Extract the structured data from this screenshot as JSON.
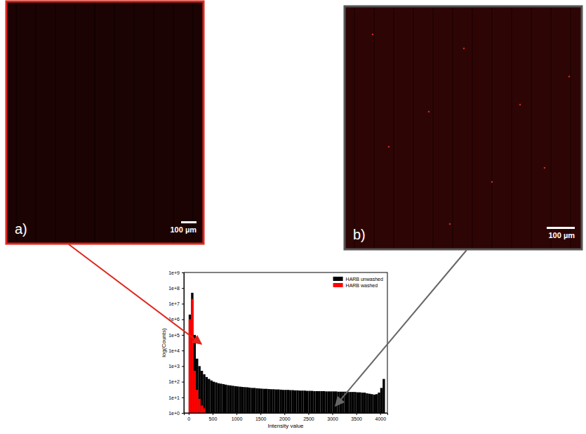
{
  "panels": [
    {
      "label": "a)",
      "scale_bar": "100 µm"
    },
    {
      "label": "b)",
      "scale_bar": "100 µm"
    }
  ],
  "chart_data": {
    "type": "histogram",
    "x_label": "Intensity value",
    "y_label": "log(Counts)",
    "bins": [
      0,
      50,
      100,
      150,
      200,
      250,
      300,
      350,
      400,
      450,
      500,
      550,
      600,
      650,
      700,
      750,
      800,
      850,
      900,
      950,
      1000,
      1050,
      1100,
      1150,
      1200,
      1250,
      1300,
      1350,
      1400,
      1450,
      1500,
      1550,
      1600,
      1650,
      1700,
      1750,
      1800,
      1850,
      1900,
      1950,
      2000,
      2050,
      2100,
      2150,
      2200,
      2250,
      2300,
      2350,
      2400,
      2450,
      2500,
      2550,
      2600,
      2650,
      2700,
      2750,
      2800,
      2850,
      2900,
      2950,
      3000,
      3050,
      3100,
      3150,
      3200,
      3250,
      3300,
      3350,
      3400,
      3450,
      3500,
      3550,
      3600,
      3650,
      3700,
      3750,
      3800,
      3850,
      3900,
      3950,
      4000,
      4050,
      4100
    ],
    "series": [
      {
        "name": "HARB unwashed",
        "color": "#000000",
        "values": [
          2000000,
          50000000,
          100000,
          3000,
          1000,
          500,
          300,
          200,
          150,
          120,
          100,
          90,
          80,
          75,
          70,
          65,
          60,
          58,
          55,
          52,
          50,
          48,
          46,
          45,
          44,
          42,
          40,
          40,
          38,
          37,
          36,
          35,
          35,
          34,
          33,
          33,
          32,
          32,
          31,
          30,
          30,
          30,
          29,
          29,
          28,
          28,
          27,
          27,
          27,
          26,
          26,
          26,
          25,
          25,
          25,
          25,
          25,
          24,
          24,
          24,
          24,
          24,
          23,
          23,
          23,
          23,
          22,
          22,
          22,
          22,
          21,
          21,
          20,
          20,
          18,
          17,
          16,
          15,
          16,
          20,
          40,
          150
        ]
      },
      {
        "name": "HARB washed",
        "color": "#ff0000",
        "values": [
          1000000,
          20000000,
          500,
          30,
          8,
          3,
          2,
          1,
          0,
          0,
          0,
          0,
          0,
          0,
          0,
          0,
          0,
          0,
          0,
          0,
          0,
          0,
          0,
          0,
          0,
          0,
          0,
          0,
          0,
          0,
          0,
          0,
          0,
          0,
          0,
          0,
          0,
          0,
          0,
          0,
          0,
          0,
          0,
          0,
          0,
          0,
          0,
          0,
          0,
          0,
          0,
          0,
          0,
          0,
          0,
          0,
          0,
          0,
          0,
          0,
          0,
          0,
          0,
          0,
          0,
          0,
          0,
          0,
          0,
          0,
          0,
          0,
          0,
          0,
          0,
          0,
          0,
          0,
          0,
          0,
          0,
          0
        ]
      }
    ],
    "xlim": [
      -100,
      4150
    ],
    "ylim": [
      1,
      1000000000
    ],
    "xticks": [
      0,
      500,
      1000,
      1500,
      2000,
      2500,
      3000,
      3500,
      4000
    ],
    "yticks": [
      {
        "value": 1,
        "label": "1e+0"
      },
      {
        "value": 10,
        "label": "1e+1"
      },
      {
        "value": 100,
        "label": "1e+2"
      },
      {
        "value": 1000,
        "label": "1e+3"
      },
      {
        "value": 10000,
        "label": "1e+4"
      },
      {
        "value": 100000,
        "label": "1e+5"
      },
      {
        "value": 1000000,
        "label": "1e+6"
      },
      {
        "value": 10000000,
        "label": "1e+7"
      },
      {
        "value": 100000000,
        "label": "1e+8"
      },
      {
        "value": 1000000000,
        "label": "1e+9"
      }
    ],
    "log": "y",
    "legend": "top-right"
  }
}
